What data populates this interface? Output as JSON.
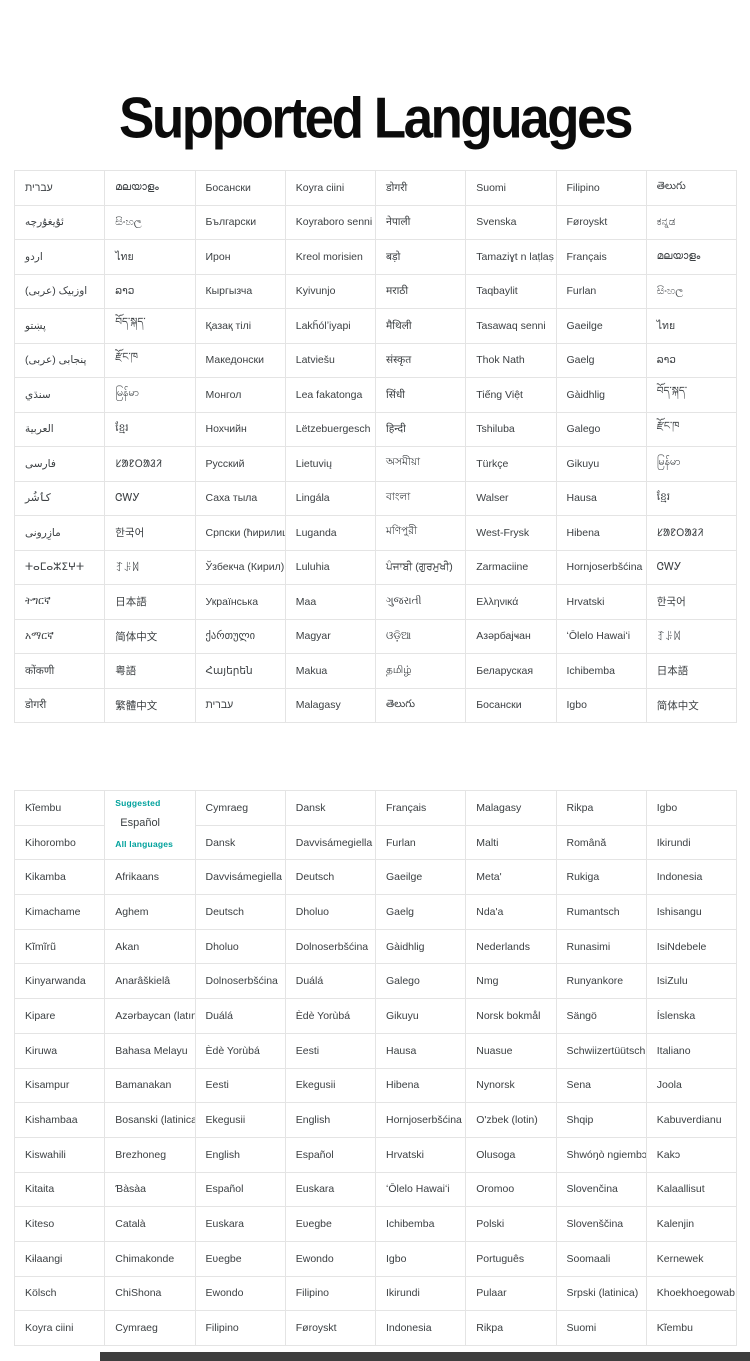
{
  "title": "Supported Languages",
  "colors": {
    "accent_teal": "#00a19c",
    "cell_text": "#3c4043",
    "grid_border": "#e4e4e4",
    "bottom_bar": "#3e3e3e",
    "title_text": "#0b0b0b"
  },
  "table1": {
    "rows": 16,
    "cols": 8,
    "columns": [
      [
        "עברית",
        "ئۇيغۇرچە",
        "اردو",
        "اوزبیک (عربی)",
        "پښتو",
        "پنجابی (عربی)",
        "سنڌي",
        "العربية",
        "فارسی",
        "کٲشُر",
        "مازِرونی",
        "ⵜⴰⵎⴰⵣⵉⵖⵜ",
        "ትግርኛ",
        "አማርኛ",
        "कोंकणी",
        "डोगरी"
      ],
      [
        "മലയാളം",
        "සිංහල",
        "ไทย",
        "ລາວ",
        "བོད་སྐད་",
        "རྫོང་ཁ",
        "မြန်မာ",
        "ខ្មែរ",
        "ᱥᱟᱱᱛᱟᱲᱤ",
        "ᏣᎳᎩ",
        "한국어",
        "ꆈꌠꉙ",
        "日本語",
        "简体中文",
        "粤語",
        "繁體中文"
      ],
      [
        "Босански",
        "Български",
        "Ирон",
        "Кыргызча",
        "Қазақ тілі",
        "Македонски",
        "Монгол",
        "Нохчийн",
        "Русский",
        "Саха тыла",
        "Српски (ћирилица)",
        "Ўзбекча (Кирил)",
        "Українська",
        "ქართული",
        "Հայերեն",
        "עברית"
      ],
      [
        "Koyra ciini",
        "Koyraboro senni",
        "Kreol morisien",
        "Kyivunjo",
        "Lakȟólʼiyapi",
        "Latviešu",
        "Lea fakatonga",
        "Lëtzebuergesch",
        "Lietuvių",
        "Lingála",
        "Luganda",
        "Luluhia",
        "Maa",
        "Magyar",
        "Makua",
        "Malagasy"
      ],
      [
        "डोगरी",
        "नेपाली",
        "बड़ो",
        "मराठी",
        "मैथिली",
        "संस्कृत",
        "सिंधी",
        "हिन्दी",
        "অসমীয়া",
        "বাংলা",
        "মণিপুরী",
        "ਪੰਜਾਬੀ (ਗੁਰਮੁਖੀ)",
        "ગુજરાતી",
        "ଓଡ଼ିଆ",
        "தமிழ்",
        "తెలుగు"
      ],
      [
        "Suomi",
        "Svenska",
        "Tamaziɣt n laṭlaṣ",
        "Taqbaylit",
        "Tasawaq senni",
        "Thok Nath",
        "Tiếng Việt",
        "Tshiluba",
        "Türkçe",
        "Walser",
        "West-Frysk",
        "Zarmaciine",
        "Ελληνικά",
        "Азәрбајҹан",
        "Беларуская",
        "Босански"
      ],
      [
        "Filipino",
        "Føroyskt",
        "Français",
        "Furlan",
        "Gaeilge",
        "Gaelg",
        "Gàidhlig",
        "Galego",
        "Gikuyu",
        "Hausa",
        "Hibena",
        "Hornjoserbšćina",
        "Hrvatski",
        "ʻŌlelo Hawaiʻi",
        "Ichibemba",
        "Igbo"
      ],
      [
        "తెలుగు",
        "ಕನ್ನಡ",
        "മലയാളം",
        "සිංහල",
        "ไทย",
        "ລາວ",
        "བོད་སྐད་",
        "རྫོང་ཁ",
        "မြန်မာ",
        "ខ្មែរ",
        "ᱥᱟᱱᱛᱟᱲᱤ",
        "ᏣᎳᎩ",
        "한국어",
        "ꆈꌠꉙ",
        "日本語",
        "简体中文"
      ]
    ]
  },
  "table2": {
    "rows": 16,
    "cols": 8,
    "suggested_label": "Suggested",
    "suggested_language": "Español",
    "all_languages_label": "All languages",
    "columns": [
      [
        "Kĩembu",
        "Kihorombo",
        "Kikamba",
        "Kimachame",
        "Kĩmĩrũ",
        "Kinyarwanda",
        "Kipare",
        "Kiruwa",
        "Kisampur",
        "Kishambaa",
        "Kiswahili",
        "Kitaita",
        "Kiteso",
        "Kɨlaangi",
        "Kölsch",
        "Koyra ciini"
      ],
      [
        "Afrikaans",
        "Aghem",
        "Akan",
        "Anarâškielâ",
        "Azərbaycan (latın)",
        "Bahasa Melayu",
        "Bamanakan",
        "Bosanski (latinica)",
        "Brezhoneg",
        "Ɓàsàa",
        "Català",
        "Chimakonde",
        "ChiShona",
        "Cymraeg"
      ],
      [
        "Cymraeg",
        "Dansk",
        "Davvisámegiella",
        "Deutsch",
        "Dholuo",
        "Dolnoserbšćina",
        "Duálá",
        "Èdè Yorùbá",
        "Eesti",
        "Ekegusii",
        "English",
        "Español",
        "Euskara",
        "Eʋegbe",
        "Ewondo",
        "Filipino"
      ],
      [
        "Dansk",
        "Davvisámegiella",
        "Deutsch",
        "Dholuo",
        "Dolnoserbšćina",
        "Duálá",
        "Èdè Yorùbá",
        "Eesti",
        "Ekegusii",
        "English",
        "Español",
        "Euskara",
        "Eʋegbe",
        "Ewondo",
        "Filipino",
        "Føroyskt"
      ],
      [
        "Français",
        "Furlan",
        "Gaeilge",
        "Gaelg",
        "Gàidhlig",
        "Galego",
        "Gikuyu",
        "Hausa",
        "Hibena",
        "Hornjoserbšćina",
        "Hrvatski",
        "ʻŌlelo Hawaiʻi",
        "Ichibemba",
        "Igbo",
        "Ikirundi",
        "Indonesia"
      ],
      [
        "Malagasy",
        "Malti",
        "Meta'",
        "Nda'a",
        "Nederlands",
        "Nmg",
        "Norsk bokmål",
        "Nuasue",
        "Nynorsk",
        "O'zbek (lotin)",
        "Olusoga",
        "Oromoo",
        "Polski",
        "Português",
        "Pulaar",
        "Rikpa"
      ],
      [
        "Rikpa",
        "Română",
        "Rukiga",
        "Rumantsch",
        "Runasimi",
        "Runyankore",
        "Sängö",
        "Schwiizertüütsch",
        "Sena",
        "Shqip",
        "Shwóŋò ngiembɔɔn",
        "Slovenčina",
        "Slovenščina",
        "Soomaali",
        "Srpski (latinica)",
        "Suomi"
      ],
      [
        "Igbo",
        "Ikirundi",
        "Indonesia",
        "Ishisangu",
        "IsiNdebele",
        "IsiZulu",
        "Íslenska",
        "Italiano",
        "Joola",
        "Kabuverdianu",
        "Kakɔ",
        "Kalaallisut",
        "Kalenjin",
        "Kernewek",
        "Khoekhoegowab",
        "Kĩembu"
      ]
    ]
  }
}
